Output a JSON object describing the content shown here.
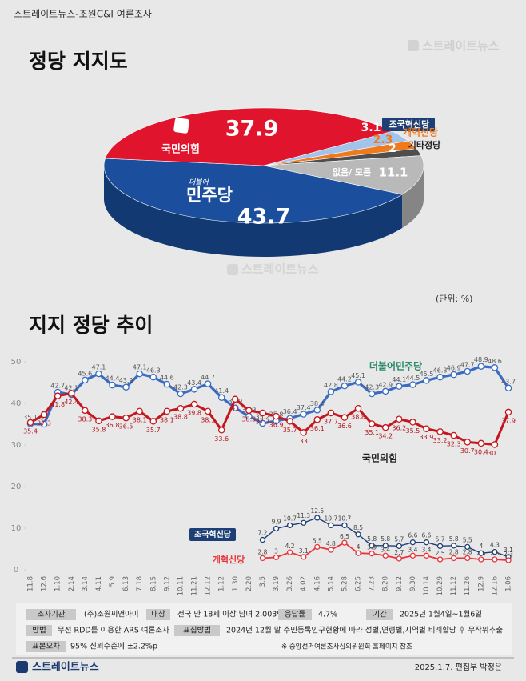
{
  "header": {
    "source": "스트레이트뉴스-조원C&I 여론조사",
    "watermark": "스트레이트뉴스",
    "unit": "(단위: %)"
  },
  "chart_data": [
    {
      "type": "pie",
      "title": "정당 지지도",
      "logo_prefix": "더불어",
      "categories": [
        "민주당",
        "국민의힘",
        "조국혁신당",
        "개혁신당",
        "기타정당",
        "없음/ 모름"
      ],
      "values": [
        43.7,
        37.9,
        3.1,
        2.3,
        2.0,
        11.1
      ],
      "colors": [
        "#1b4f9e",
        "#e0142d",
        "#a3c4ea",
        "#ef7a1e",
        "#4e4e4e",
        "#b9b9b9"
      ]
    },
    {
      "type": "line",
      "title": "지지 정당 추이",
      "grid": false,
      "x": [
        "11.8",
        "12.6",
        "1.10",
        "2.14",
        "3.14",
        "4.11",
        "5.9",
        "6.13",
        "7.18",
        "8.15",
        "9.12",
        "10.11",
        "11.21",
        "12.12",
        "1.12",
        "1.30",
        "2.20",
        "3.5",
        "3.19",
        "3.26",
        "4.02",
        "4.16",
        "5.14",
        "5.28",
        "6.25",
        "7.23",
        "8.20",
        "9.12",
        "9.30",
        "10.14",
        "10.29",
        "11.12",
        "11.26",
        "12.9",
        "12.16",
        "1.06"
      ],
      "ylim": [
        0,
        51
      ],
      "yticks": [
        0,
        10,
        20,
        30,
        40,
        50
      ],
      "series": [
        {
          "name": "더불어민주당",
          "color": "#3a6cc4",
          "values": [
            35.1,
            35,
            42.7,
            42.1,
            45.6,
            47.1,
            44.4,
            43.9,
            47.1,
            46.3,
            44.6,
            42.3,
            43.4,
            44.7,
            41.4,
            38.9,
            36.9,
            35.2,
            35.8,
            36.4,
            37.4,
            38.4,
            42.8,
            44.2,
            45.1,
            42.3,
            42.9,
            44.1,
            44.5,
            45.5,
            46.3,
            46.9,
            47.7,
            48.9,
            48.6,
            43.7
          ]
        },
        {
          "name": "국민의힘",
          "color": "#c4161c",
          "values": [
            35.4,
            37.3,
            41.8,
            42.4,
            38.3,
            35.8,
            36.8,
            36.5,
            38.1,
            35.7,
            38.1,
            38.8,
            39.8,
            38.1,
            33.6,
            41,
            38.3,
            37.7,
            36.9,
            35.7,
            33,
            36.1,
            37.7,
            36.6,
            38.8,
            35.1,
            34.2,
            36.2,
            35.5,
            33.9,
            33.2,
            32.3,
            30.7,
            30.4,
            30.1,
            37.9
          ]
        },
        {
          "name": "조국혁신당",
          "color": "#1d3f75",
          "values": [
            null,
            null,
            null,
            null,
            null,
            null,
            null,
            null,
            null,
            null,
            null,
            null,
            null,
            null,
            null,
            null,
            null,
            7.2,
            9.9,
            10.7,
            11.3,
            12.5,
            10.7,
            10.7,
            8.5,
            5.8,
            5.8,
            5.7,
            6.6,
            6.6,
            5.7,
            5.8,
            5.5,
            4,
            4.3,
            3.1
          ]
        },
        {
          "name": "개혁신당",
          "color": "#e8343a",
          "values": [
            null,
            null,
            null,
            null,
            null,
            null,
            null,
            null,
            null,
            null,
            null,
            null,
            null,
            null,
            null,
            null,
            null,
            2.8,
            3,
            4.2,
            3.1,
            5.5,
            4.8,
            6.5,
            4,
            3.9,
            3.4,
            2.7,
            3.4,
            3.4,
            2.5,
            2.8,
            2.8,
            2.5,
            2.5,
            2.3
          ]
        }
      ]
    }
  ],
  "survey_info": {
    "rows": [
      [
        {
          "label": "조사기관",
          "value": "(주)조원씨앤아이"
        },
        {
          "label": "대상",
          "value": "전국 만 18세 이상 남녀 2,003명"
        },
        {
          "label": "응답률",
          "value": "4.7%"
        },
        {
          "label": "기간",
          "value": "2025년 1월4일~1월6일"
        }
      ],
      [
        {
          "label": "방법",
          "value": "무선 RDD를 이용한 ARS 여론조사"
        },
        {
          "label": "표집방법",
          "value": "2024년 12월 말 주민등록인구현황에 따라 성별,연령별,지역별 비례할당 후 무작위추출"
        }
      ],
      [
        {
          "label": "표본오차",
          "value": "95% 신뢰수준에 ±2.2%p"
        }
      ]
    ],
    "note": "※ 중앙선거여론조사심의위원회 홈페이지 참조"
  },
  "footer": {
    "brand": "스트레이트뉴스",
    "credit": "2025.1.7. 편집부 박정은"
  }
}
